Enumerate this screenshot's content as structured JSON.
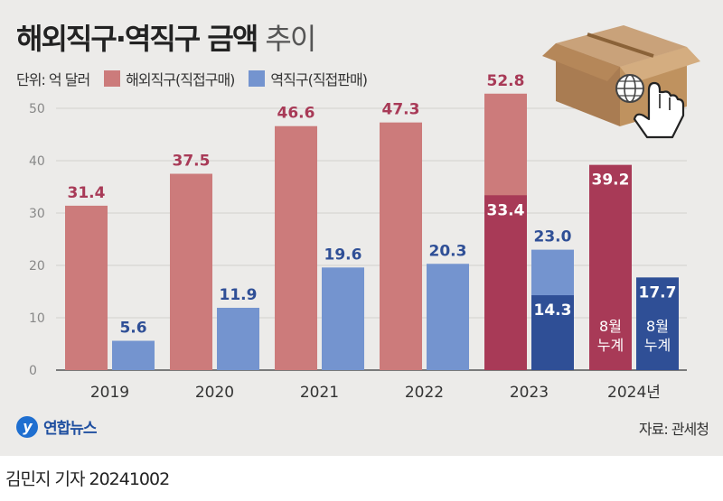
{
  "header": {
    "title_main": "해외직구·역직구 금액",
    "title_light": "추이"
  },
  "legend": {
    "unit": "단위: 억 달러",
    "series1": "해외직구(직접구매)",
    "series2": "역직구(직접판매)"
  },
  "colors": {
    "overseas": "#cc7b7b",
    "overseas_highlight": "#a83a57",
    "reverse": "#7494cf",
    "reverse_highlight": "#2f4f96",
    "overseas_label": "#a83a57",
    "reverse_label": "#2f4f96"
  },
  "chart_data": {
    "type": "bar",
    "categories": [
      "2019",
      "2020",
      "2021",
      "2022",
      "2023",
      "2024년"
    ],
    "ylim": [
      0,
      55
    ],
    "yticks": [
      0,
      10,
      20,
      30,
      40,
      50
    ],
    "grid": true,
    "series": [
      {
        "name": "해외직구(직접구매)",
        "values": [
          31.4,
          37.5,
          46.6,
          47.3,
          52.8,
          39.2
        ],
        "labels": [
          "31.4",
          "37.5",
          "46.6",
          "47.3",
          "52.8",
          "39.2"
        ],
        "partial_values": [
          null,
          null,
          null,
          null,
          33.4,
          null
        ],
        "partial_labels": [
          null,
          null,
          null,
          null,
          "33.4",
          null
        ]
      },
      {
        "name": "역직구(직접판매)",
        "values": [
          5.6,
          11.9,
          19.6,
          20.3,
          23.0,
          17.7
        ],
        "labels": [
          "5.6",
          "11.9",
          "19.6",
          "20.3",
          "23.0",
          "17.7"
        ],
        "partial_values": [
          null,
          null,
          null,
          null,
          14.3,
          null
        ],
        "partial_labels": [
          null,
          null,
          null,
          null,
          "14.3",
          null
        ]
      }
    ],
    "notes": [
      "8월\n누계",
      "8월\n누계"
    ]
  },
  "footer": {
    "logo_text": "연합뉴스",
    "source": "자료: 관세청",
    "byline": "김민지 기자  20241002"
  },
  "icons": [
    "box-with-globe-icon",
    "hand-pointer-icon",
    "yonhap-logo-icon"
  ]
}
